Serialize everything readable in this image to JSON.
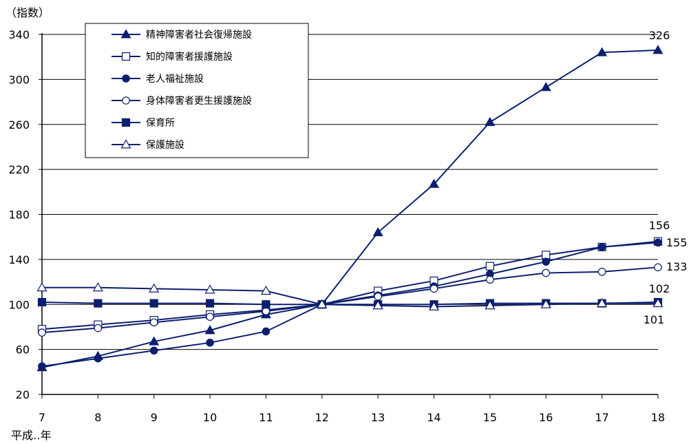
{
  "chart_data": {
    "type": "line",
    "ylabel": "（指数）",
    "xlabel": "平成‥年",
    "ylim": [
      20,
      340
    ],
    "yticks": [
      20,
      60,
      100,
      140,
      180,
      220,
      260,
      300,
      340
    ],
    "x": [
      "7",
      "8",
      "9",
      "10",
      "11",
      "12",
      "13",
      "14",
      "15",
      "16",
      "17",
      "18"
    ],
    "grid": true,
    "legend_position": "top-left",
    "colors": {
      "line": "#0c1f6e",
      "grid": "#000000"
    },
    "series": [
      {
        "name": "精神障害者社会復帰施設",
        "marker": "triangle-filled",
        "values": [
          44,
          54,
          67,
          77,
          91,
          100,
          164,
          207,
          262,
          293,
          324,
          326
        ]
      },
      {
        "name": "知的障害者援護施設",
        "marker": "square-open",
        "values": [
          78,
          82,
          86,
          91,
          95,
          100,
          112,
          121,
          134,
          144,
          151,
          156
        ]
      },
      {
        "name": "老人福祉施設",
        "marker": "circle-filled",
        "values": [
          45,
          52,
          59,
          66,
          76,
          100,
          108,
          116,
          127,
          138,
          151,
          155
        ]
      },
      {
        "name": "身体障害者更生援護施設",
        "marker": "circle-open",
        "values": [
          75,
          79,
          84,
          89,
          94,
          100,
          107,
          114,
          122,
          128,
          129,
          133
        ]
      },
      {
        "name": "保育所",
        "marker": "square-filled",
        "values": [
          102,
          101,
          101,
          101,
          100,
          100,
          100,
          100,
          101,
          101,
          101,
          102
        ]
      },
      {
        "name": "保護施設",
        "marker": "triangle-open",
        "values": [
          115,
          115,
          114,
          113,
          112,
          100,
          99,
          98,
          99,
          100,
          101,
          101
        ]
      }
    ],
    "annotations": [
      {
        "text": "326",
        "x": "18",
        "y": 326,
        "series": "精神障害者社会復帰施設"
      },
      {
        "text": "156",
        "x": "18",
        "y": 156,
        "series": "知的障害者援護施設"
      },
      {
        "text": "155",
        "x": "18",
        "y": 155,
        "series": "老人福祉施設"
      },
      {
        "text": "133",
        "x": "18",
        "y": 133,
        "series": "身体障害者更生援護施設"
      },
      {
        "text": "102",
        "x": "18",
        "y": 102,
        "series": "保育所"
      },
      {
        "text": "101",
        "x": "18",
        "y": 101,
        "series": "保護施設"
      }
    ]
  }
}
